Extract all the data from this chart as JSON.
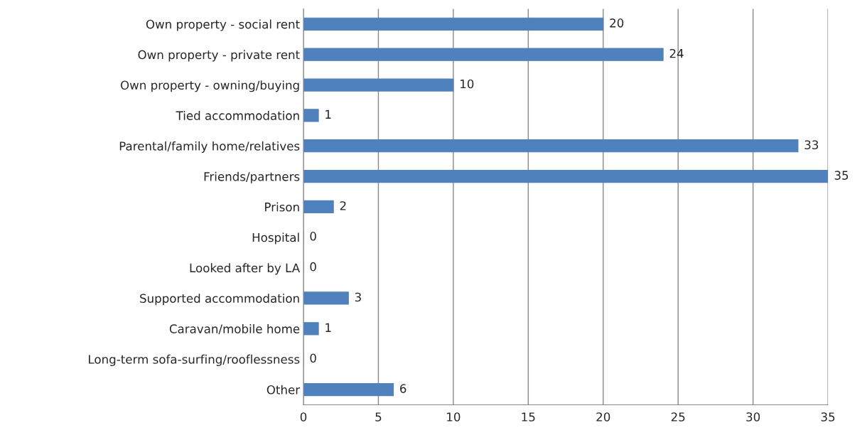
{
  "chart_data": {
    "type": "bar",
    "orientation": "horizontal",
    "categories": [
      "Own property - social rent",
      "Own property - private rent",
      "Own property - owning/buying",
      "Tied accommodation",
      "Parental/family home/relatives",
      "Friends/partners",
      "Prison",
      "Hospital",
      "Looked after by LA",
      "Supported accommodation",
      "Caravan/mobile home",
      "Long-term sofa-surfing/rooflessness",
      "Other"
    ],
    "values": [
      20,
      24,
      10,
      1,
      33,
      35,
      2,
      0,
      0,
      3,
      1,
      0,
      6
    ],
    "color": "#4f81bd",
    "xlim": [
      0,
      35
    ],
    "xticks": [
      0,
      5,
      10,
      15,
      20,
      25,
      30,
      35
    ],
    "grid": "x",
    "data_labels": true
  }
}
